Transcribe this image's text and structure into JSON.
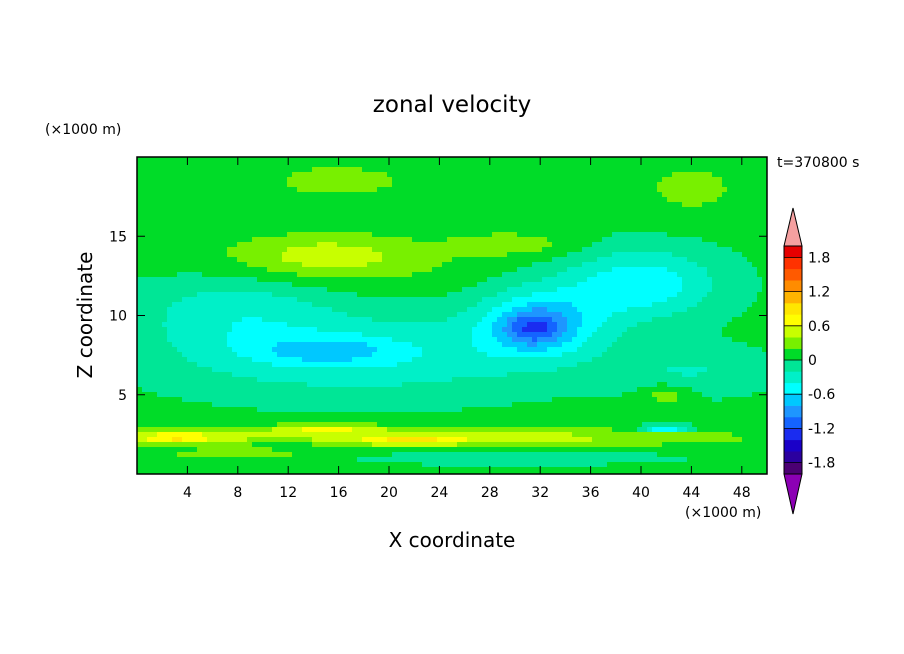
{
  "chart_data": {
    "type": "heatmap",
    "title": "zonal velocity",
    "xlabel": "X coordinate",
    "ylabel": "Z coordinate",
    "x_unit": "(×1000 m)",
    "y_unit": "(×1000 m)",
    "time_label": "t=370800 s",
    "xlim": [
      0,
      50
    ],
    "ylim": [
      0,
      20
    ],
    "x_ticks": [
      4,
      8,
      12,
      16,
      20,
      24,
      28,
      32,
      36,
      40,
      44,
      48
    ],
    "y_ticks": [
      5,
      10,
      15
    ],
    "colorbar": {
      "levels": [
        -2.0,
        -1.8,
        -1.6,
        -1.4,
        -1.2,
        -1.0,
        -0.8,
        -0.6,
        -0.4,
        -0.2,
        0.0,
        0.2,
        0.4,
        0.6,
        0.8,
        1.0,
        1.2,
        1.4,
        1.6,
        1.8,
        2.0
      ],
      "colors": [
        "#4b0073",
        "#2b009f",
        "#1a00c8",
        "#1a2cf0",
        "#1464ff",
        "#1e96ff",
        "#00c8ff",
        "#00ffff",
        "#00f0c8",
        "#00e696",
        "#00dc28",
        "#78f000",
        "#c8ff00",
        "#ffff00",
        "#ffe600",
        "#ffb400",
        "#ff8c00",
        "#ff5a00",
        "#ff3200",
        "#e60000"
      ],
      "under_color": "#8c00b4",
      "over_color": "#f5a0a0",
      "tick_labels": [
        "-1.8",
        "-1.2",
        "-0.6",
        "0",
        "0.6",
        "1.2",
        "1.8"
      ],
      "tick_values": [
        -1.8,
        -1.2,
        -0.6,
        0,
        0.6,
        1.2,
        1.8
      ]
    },
    "background_value": 0.05,
    "features": [
      {
        "x": 16,
        "z": 18.5,
        "sx": 8,
        "sz": 1.5,
        "v": 0.2
      },
      {
        "x": 44,
        "z": 18,
        "sx": 5,
        "sz": 2,
        "v": 0.2
      },
      {
        "x": 14,
        "z": 13.5,
        "sx": 11,
        "sz": 1.8,
        "v": 0.35
      },
      {
        "x": 15,
        "z": 13.8,
        "sx": 5,
        "sz": 1.0,
        "v": 0.2
      },
      {
        "x": 30,
        "z": 14.5,
        "sx": 5,
        "sz": 0.8,
        "v": 0.25
      },
      {
        "x": 8,
        "z": 10.5,
        "sx": 8,
        "sz": 3,
        "v": -0.35
      },
      {
        "x": 18,
        "z": 7.5,
        "sx": 14,
        "sz": 2.5,
        "v": -0.45
      },
      {
        "x": 15,
        "z": 7.8,
        "sx": 5,
        "sz": 0.8,
        "v": -0.35
      },
      {
        "x": 32,
        "z": 9.5,
        "sx": 5,
        "sz": 2.2,
        "v": -0.75
      },
      {
        "x": 40,
        "z": 12,
        "sx": 6,
        "sz": 2.2,
        "v": -0.6
      },
      {
        "x": 31.5,
        "z": 9.2,
        "sx": 2.2,
        "sz": 1.0,
        "v": -0.5
      },
      {
        "x": 44,
        "z": 6.5,
        "sx": 6,
        "sz": 1.5,
        "v": -0.25
      },
      {
        "x": 42,
        "z": 5,
        "sx": 2,
        "sz": 0.7,
        "v": 0.3
      },
      {
        "x": 20,
        "z": 2.3,
        "sx": 25,
        "sz": 0.6,
        "v": 0.55
      },
      {
        "x": 15,
        "z": 2.9,
        "sx": 4,
        "sz": 0.3,
        "v": 0.45
      },
      {
        "x": 3,
        "z": 2.3,
        "sx": 3,
        "sz": 0.3,
        "v": 0.5
      },
      {
        "x": 22,
        "z": 2.1,
        "sx": 3,
        "sz": 0.25,
        "v": 0.4
      },
      {
        "x": 12,
        "z": 2.0,
        "sx": 4,
        "sz": 0.3,
        "v": -0.25
      },
      {
        "x": 42,
        "z": 2.9,
        "sx": 2,
        "sz": 0.2,
        "v": -0.9
      },
      {
        "x": 30,
        "z": 1.0,
        "sx": 12,
        "sz": 0.4,
        "v": -0.2
      },
      {
        "x": 8,
        "z": 1.2,
        "sx": 6,
        "sz": 0.35,
        "v": 0.25
      }
    ]
  }
}
